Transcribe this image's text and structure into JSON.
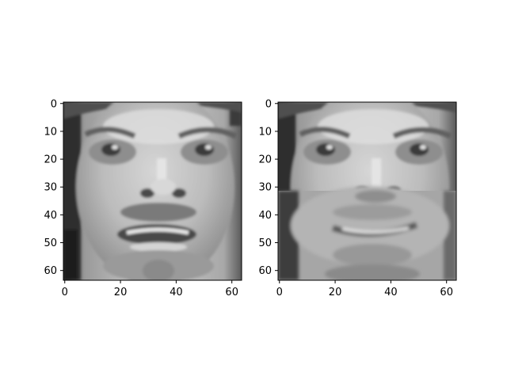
{
  "chart_data": [
    {
      "type": "heatmap",
      "colormap": "gray",
      "xlim": [
        -0.5,
        63.5
      ],
      "ylim": [
        63.5,
        -0.5
      ],
      "x_ticks": [
        0,
        20,
        40,
        60
      ],
      "y_ticks": [
        0,
        10,
        20,
        30,
        40,
        50,
        60
      ],
      "x_tick_labels": [
        "0",
        "20",
        "40",
        "60"
      ],
      "y_tick_labels": [
        "0",
        "10",
        "20",
        "30",
        "40",
        "50",
        "60"
      ],
      "image_shape": [
        64,
        64
      ]
    },
    {
      "type": "heatmap",
      "colormap": "gray",
      "xlim": [
        -0.5,
        63.5
      ],
      "ylim": [
        63.5,
        -0.5
      ],
      "x_ticks": [
        0,
        20,
        40,
        60
      ],
      "y_ticks": [
        0,
        10,
        20,
        30,
        40,
        50,
        60
      ],
      "x_tick_labels": [
        "0",
        "20",
        "40",
        "60"
      ],
      "y_tick_labels": [
        "0",
        "10",
        "20",
        "30",
        "40",
        "50",
        "60"
      ],
      "image_shape": [
        64,
        64
      ],
      "lower_half_reconstructed_from_row": 32
    }
  ]
}
